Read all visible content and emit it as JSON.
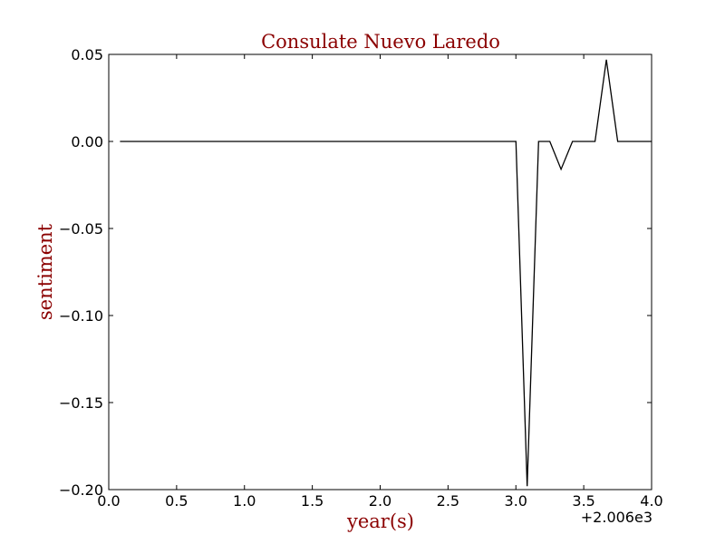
{
  "chart_data": {
    "type": "line",
    "title": "Consulate Nuevo Laredo",
    "xlabel": "year(s)",
    "ylabel": "sentiment",
    "x_offset_label": "+2.006e3",
    "xlim": [
      0.0,
      4.0
    ],
    "ylim": [
      -0.2,
      0.05
    ],
    "x_ticks": [
      0.0,
      0.5,
      1.0,
      1.5,
      2.0,
      2.5,
      3.0,
      3.5,
      4.0
    ],
    "x_tick_labels": [
      "0.0",
      "0.5",
      "1.0",
      "1.5",
      "2.0",
      "2.5",
      "3.0",
      "3.5",
      "4.0"
    ],
    "y_ticks": [
      0.05,
      0.0,
      -0.05,
      -0.1,
      -0.15,
      -0.2
    ],
    "y_tick_labels": [
      "0.05",
      "0.00",
      "−0.05",
      "−0.10",
      "−0.15",
      "−0.20"
    ],
    "grid": false,
    "series": [
      {
        "color": "#000000",
        "x": [
          0.083,
          3.0,
          3.083,
          3.167,
          3.25,
          3.333,
          3.417,
          3.5,
          3.583,
          3.667,
          3.75,
          3.833,
          4.0
        ],
        "y": [
          0.0,
          0.0,
          -0.198,
          0.0,
          0.0,
          -0.016,
          0.0,
          0.0,
          0.0,
          0.047,
          0.0,
          0.0,
          0.0
        ]
      }
    ],
    "colors": {
      "title": "#8b0000",
      "axis_label": "#8b0000",
      "line": "#000000"
    }
  }
}
